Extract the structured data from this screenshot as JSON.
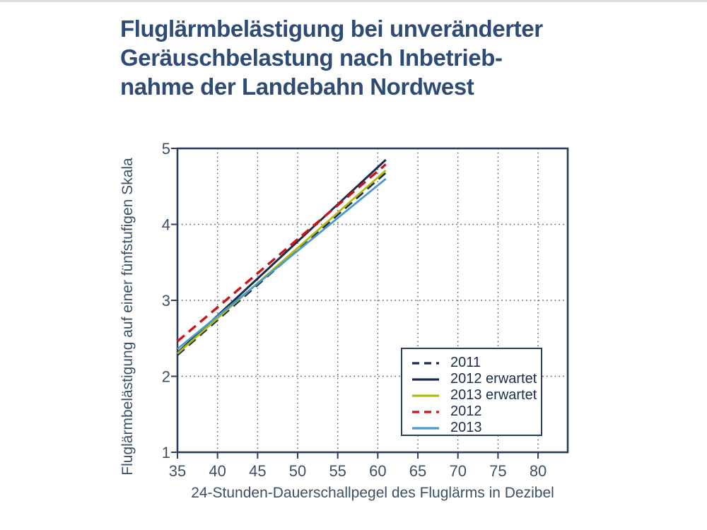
{
  "top_strip_color": "#dcdcdc",
  "title": {
    "lines": [
      "Fluglärmbelästigung bei unveränderter",
      "Geräuschbelastung nach Inbetrieb-",
      "nahme der Landebahn Nordwest"
    ],
    "color": "#2e4b76"
  },
  "colors": {
    "axis_box": "#2b3e5e",
    "grid": "#4d5a6a",
    "tick_text": "#3c5064",
    "navy": "#1c2b4d",
    "red": "#cc1518",
    "yellow_green": "#b2bc0e",
    "light_blue": "#4a9aca"
  },
  "chart_data": {
    "type": "line",
    "title": "Fluglärmbelästigung bei unveränderter Geräuschbelastung nach Inbetriebnahme der Landebahn Nordwest",
    "xlabel": "24-Stunden-Dauerschallpegel des Fluglärms in Dezibel",
    "ylabel": "Fluglärmbelästigung auf einer fünfstufigen Skala",
    "xlim": [
      35,
      83.7
    ],
    "ylim": [
      1,
      5
    ],
    "xticks": [
      35,
      40,
      45,
      50,
      55,
      60,
      65,
      70,
      75,
      80
    ],
    "yticks": [
      1,
      2,
      3,
      4,
      5
    ],
    "grid": "dotted, vertical at each x tick and horizontal at 2/3/4",
    "legend_position": "inside lower right",
    "series": [
      {
        "name": "2011",
        "color": "#1c2b4d",
        "style": "dashed",
        "width": 3,
        "x": [
          35,
          61
        ],
        "y": [
          2.28,
          4.68
        ]
      },
      {
        "name": "2012 erwartet",
        "color": "#1c2b4d",
        "style": "solid",
        "width": 3,
        "x": [
          35,
          61
        ],
        "y": [
          2.31,
          4.85
        ]
      },
      {
        "name": "2013 erwartet",
        "color": "#b2bc0e",
        "style": "solid",
        "width": 2.8,
        "x": [
          35,
          61
        ],
        "y": [
          2.3,
          4.71
        ]
      },
      {
        "name": "2012",
        "color": "#cc1518",
        "style": "dashed",
        "width": 3.4,
        "x": [
          35,
          61
        ],
        "y": [
          2.46,
          4.79
        ]
      },
      {
        "name": "2013",
        "color": "#4a9aca",
        "style": "solid",
        "width": 2.8,
        "x": [
          35,
          61
        ],
        "y": [
          2.36,
          4.6
        ]
      }
    ]
  }
}
